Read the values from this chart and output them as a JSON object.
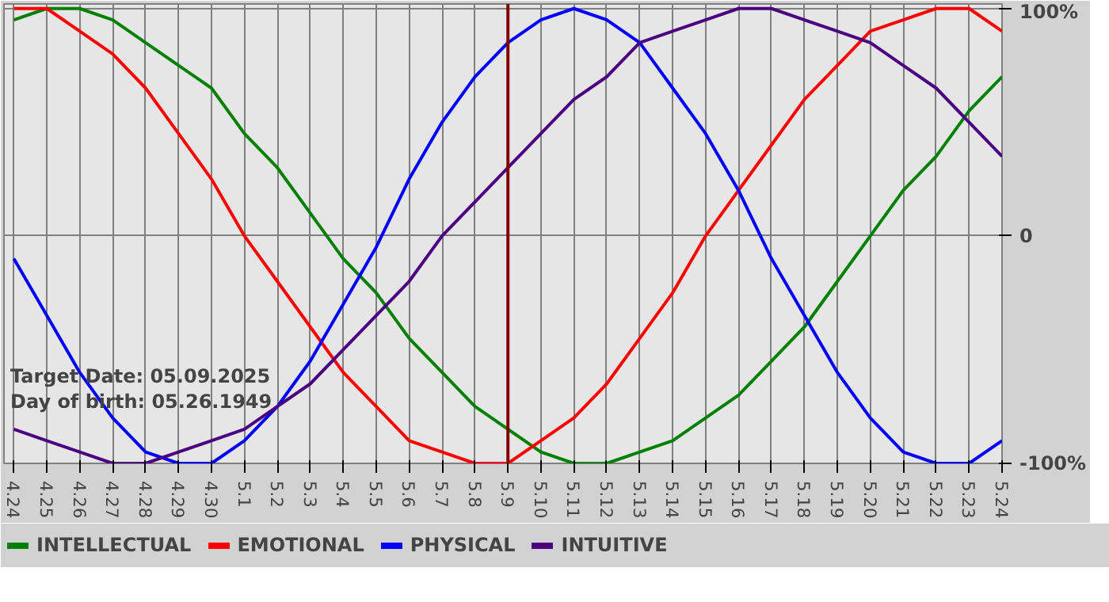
{
  "chart_data": {
    "type": "line",
    "categories": [
      "4.24",
      "4.25",
      "4.26",
      "4.27",
      "4.28",
      "4.29",
      "4.30",
      "5.1",
      "5.2",
      "5.3",
      "5.4",
      "5.5",
      "5.6",
      "5.7",
      "5.8",
      "5.9",
      "5.10",
      "5.11",
      "5.12",
      "5.13",
      "5.14",
      "5.15",
      "5.16",
      "5.17",
      "5.18",
      "5.19",
      "5.20",
      "5.21",
      "5.22",
      "5.23",
      "5.24"
    ],
    "series": [
      {
        "name": "INTELLECTUAL",
        "color": "#008000",
        "values": [
          95,
          100,
          100,
          95,
          85,
          75,
          65,
          45,
          30,
          10,
          -10,
          -25,
          -45,
          -60,
          -75,
          -85,
          -95,
          -100,
          -100,
          -95,
          -90,
          -80,
          -70,
          -55,
          -40,
          -20,
          0,
          20,
          35,
          55,
          70
        ]
      },
      {
        "name": "EMOTIONAL",
        "color": "#ff0000",
        "values": [
          100,
          100,
          90,
          80,
          65,
          45,
          25,
          0,
          -20,
          -40,
          -60,
          -75,
          -90,
          -95,
          -100,
          -100,
          -90,
          -80,
          -65,
          -45,
          -25,
          0,
          20,
          40,
          60,
          75,
          90,
          95,
          100,
          100,
          90
        ]
      },
      {
        "name": "PHYSICAL",
        "color": "#0000ff",
        "values": [
          -10,
          -35,
          -60,
          -80,
          -95,
          -100,
          -100,
          -90,
          -75,
          -55,
          -30,
          -5,
          25,
          50,
          70,
          85,
          95,
          100,
          95,
          85,
          65,
          45,
          20,
          -10,
          -35,
          -60,
          -80,
          -95,
          -100,
          -100,
          -90
        ]
      },
      {
        "name": "INTUITIVE",
        "color": "#4b0082",
        "values": [
          -85,
          -90,
          -95,
          -100,
          -100,
          -95,
          -90,
          -85,
          -75,
          -65,
          -50,
          -35,
          -20,
          0,
          15,
          30,
          45,
          60,
          70,
          85,
          90,
          95,
          100,
          100,
          95,
          90,
          85,
          75,
          65,
          50,
          35
        ]
      }
    ],
    "ylim": [
      -100,
      102
    ],
    "yticks": [
      {
        "value": 100,
        "label": "100%"
      },
      0,
      {
        "value": -100,
        "label": "-100%"
      }
    ],
    "grid": true,
    "legend": "bottom",
    "ref_lines": [
      {
        "axis": "x",
        "value": "5.9",
        "color": "#800000"
      }
    ],
    "annotations": [
      "Target Date: 05.09.2025",
      "Day of birth: 05.26.1949"
    ]
  }
}
